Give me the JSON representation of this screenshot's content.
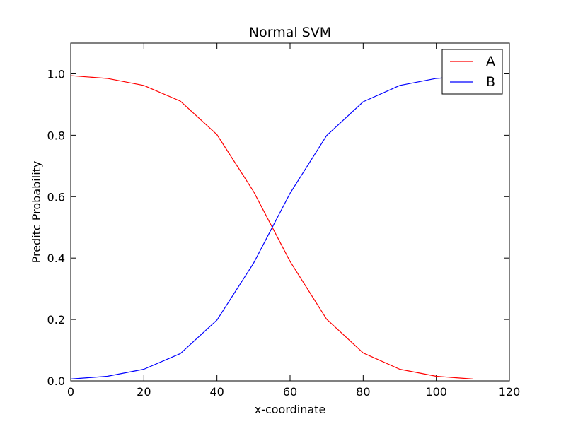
{
  "chart_data": {
    "type": "line",
    "title": "Normal SVM",
    "xlabel": "x-coordinate",
    "ylabel": "Preditc Probability",
    "xlim": [
      0,
      120
    ],
    "ylim": [
      0.0,
      1.1
    ],
    "x_ticks": [
      0,
      20,
      40,
      60,
      80,
      100,
      120
    ],
    "x_tick_labels": [
      "0",
      "20",
      "40",
      "60",
      "80",
      "100",
      "120"
    ],
    "y_ticks": [
      0.0,
      0.2,
      0.4,
      0.6,
      0.8,
      1.0
    ],
    "y_tick_labels": [
      "0.0",
      "0.2",
      "0.4",
      "0.6",
      "0.8",
      "1.0"
    ],
    "grid": false,
    "legend_position": "top-right",
    "x": [
      0,
      10,
      20,
      30,
      40,
      50,
      60,
      70,
      80,
      90,
      100,
      110
    ],
    "series": [
      {
        "name": "A",
        "color": "#ff0000",
        "values": [
          0.994,
          0.985,
          0.962,
          0.911,
          0.802,
          0.617,
          0.389,
          0.201,
          0.091,
          0.038,
          0.015,
          0.006
        ]
      },
      {
        "name": "B",
        "color": "#0000ff",
        "values": [
          0.006,
          0.015,
          0.038,
          0.089,
          0.198,
          0.383,
          0.611,
          0.799,
          0.909,
          0.962,
          0.985,
          0.994
        ]
      }
    ]
  }
}
